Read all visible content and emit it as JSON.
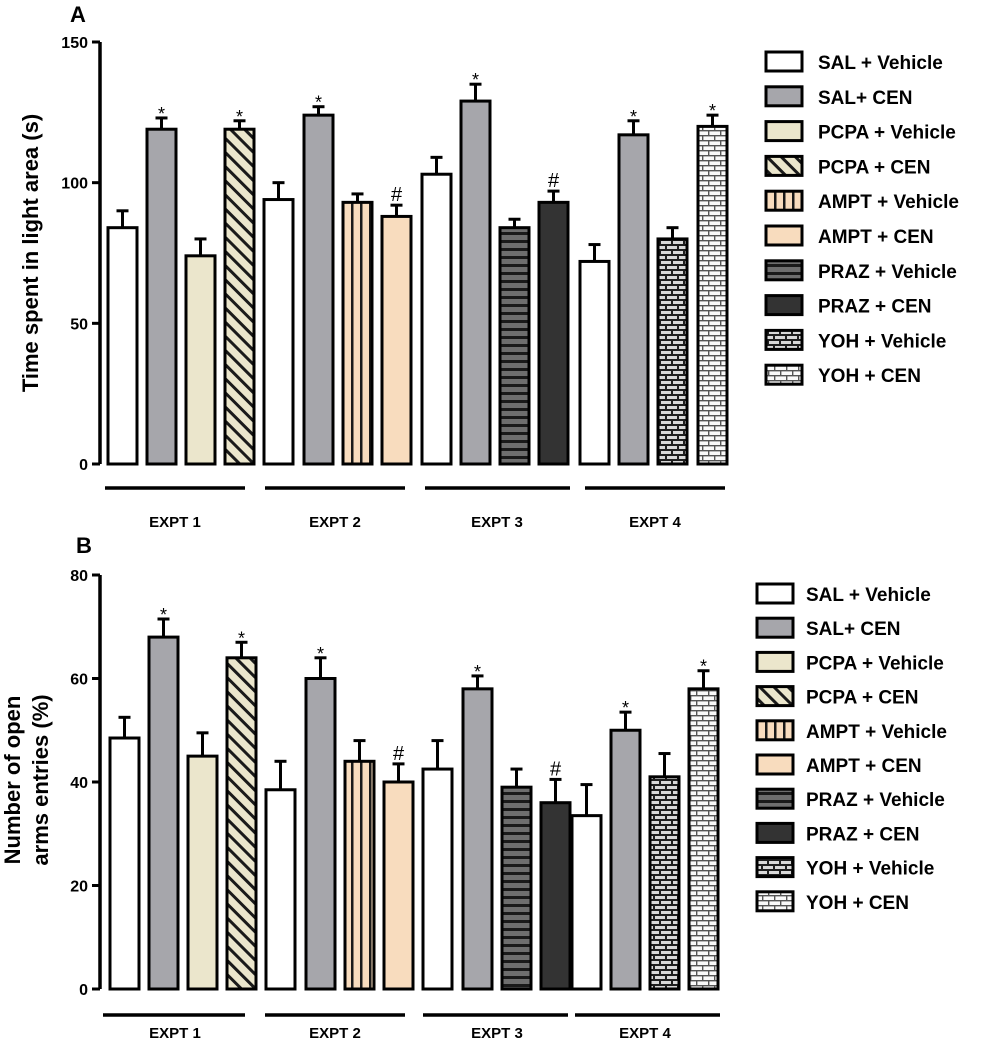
{
  "chart_data": [
    {
      "type": "bar",
      "panel": "A",
      "ylabel": "Time spent in light area (s)",
      "ylim": [
        0,
        150
      ],
      "yticks": [
        "0",
        "50",
        "100",
        "150"
      ],
      "groups": [
        "EXPT 1",
        "EXPT 2",
        "EXPT 3",
        "EXPT 4"
      ],
      "bars": [
        {
          "group": "EXPT 1",
          "series": "SAL + Vehicle",
          "value": 84,
          "error": 6,
          "mark": ""
        },
        {
          "group": "EXPT 1",
          "series": "SAL+ CEN",
          "value": 119,
          "error": 4,
          "mark": "*"
        },
        {
          "group": "EXPT 1",
          "series": "PCPA + Vehicle",
          "value": 74,
          "error": 6,
          "mark": ""
        },
        {
          "group": "EXPT 1",
          "series": "PCPA + CEN",
          "value": 119,
          "error": 3,
          "mark": "*"
        },
        {
          "group": "EXPT 2",
          "series": "SAL + Vehicle",
          "value": 94,
          "error": 6,
          "mark": ""
        },
        {
          "group": "EXPT 2",
          "series": "SAL+ CEN",
          "value": 124,
          "error": 3,
          "mark": "*"
        },
        {
          "group": "EXPT 2",
          "series": "AMPT + Vehicle",
          "value": 93,
          "error": 3,
          "mark": ""
        },
        {
          "group": "EXPT 2",
          "series": "AMPT + CEN",
          "value": 88,
          "error": 4,
          "mark": "#"
        },
        {
          "group": "EXPT 3",
          "series": "SAL + Vehicle",
          "value": 103,
          "error": 6,
          "mark": ""
        },
        {
          "group": "EXPT 3",
          "series": "SAL+ CEN",
          "value": 129,
          "error": 6,
          "mark": "*"
        },
        {
          "group": "EXPT 3",
          "series": "PRAZ + Vehicle",
          "value": 84,
          "error": 3,
          "mark": ""
        },
        {
          "group": "EXPT 3",
          "series": "PRAZ + CEN",
          "value": 93,
          "error": 4,
          "mark": "#"
        },
        {
          "group": "EXPT 4",
          "series": "SAL + Vehicle",
          "value": 72,
          "error": 6,
          "mark": ""
        },
        {
          "group": "EXPT 4",
          "series": "SAL+ CEN",
          "value": 117,
          "error": 5,
          "mark": "*"
        },
        {
          "group": "EXPT 4",
          "series": "YOH + Vehicle",
          "value": 80,
          "error": 4,
          "mark": ""
        },
        {
          "group": "EXPT 4",
          "series": "YOH + CEN",
          "value": 120,
          "error": 4,
          "mark": "*"
        }
      ]
    },
    {
      "type": "bar",
      "panel": "B",
      "ylabel": [
        "Number of open",
        "arms entries (%)"
      ],
      "ylim": [
        0,
        80
      ],
      "yticks": [
        "0",
        "20",
        "40",
        "60",
        "80"
      ],
      "groups": [
        "EXPT 1",
        "EXPT 2",
        "EXPT 3",
        "EXPT 4"
      ],
      "bars": [
        {
          "group": "EXPT 1",
          "series": "SAL + Vehicle",
          "value": 48.5,
          "error": 4,
          "mark": ""
        },
        {
          "group": "EXPT 1",
          "series": "SAL+ CEN",
          "value": 68,
          "error": 3.5,
          "mark": "*"
        },
        {
          "group": "EXPT 1",
          "series": "PCPA + Vehicle",
          "value": 45,
          "error": 4.5,
          "mark": ""
        },
        {
          "group": "EXPT 1",
          "series": "PCPA + CEN",
          "value": 64,
          "error": 3,
          "mark": "*"
        },
        {
          "group": "EXPT 2",
          "series": "SAL + Vehicle",
          "value": 38.5,
          "error": 5.5,
          "mark": ""
        },
        {
          "group": "EXPT 2",
          "series": "SAL+ CEN",
          "value": 60,
          "error": 4,
          "mark": "*"
        },
        {
          "group": "EXPT 2",
          "series": "AMPT + Vehicle",
          "value": 44,
          "error": 4,
          "mark": ""
        },
        {
          "group": "EXPT 2",
          "series": "AMPT + CEN",
          "value": 40,
          "error": 3.5,
          "mark": "#"
        },
        {
          "group": "EXPT 3",
          "series": "SAL + Vehicle",
          "value": 42.5,
          "error": 5.5,
          "mark": ""
        },
        {
          "group": "EXPT 3",
          "series": "SAL+ CEN",
          "value": 58,
          "error": 2.5,
          "mark": "*"
        },
        {
          "group": "EXPT 3",
          "series": "PRAZ + Vehicle",
          "value": 39,
          "error": 3.5,
          "mark": ""
        },
        {
          "group": "EXPT 3",
          "series": "PRAZ + CEN",
          "value": 36,
          "error": 4.5,
          "mark": "#"
        },
        {
          "group": "EXPT 4",
          "series": "SAL + Vehicle",
          "value": 33.5,
          "error": 6,
          "mark": ""
        },
        {
          "group": "EXPT 4",
          "series": "SAL+ CEN",
          "value": 50,
          "error": 3.5,
          "mark": "*"
        },
        {
          "group": "EXPT 4",
          "series": "YOH + Vehicle",
          "value": 41,
          "error": 4.5,
          "mark": ""
        },
        {
          "group": "EXPT 4",
          "series": "YOH + CEN",
          "value": 58,
          "error": 3.5,
          "mark": "*"
        }
      ]
    }
  ],
  "legend": [
    {
      "label": "SAL + Vehicle",
      "fill": "white",
      "color": "#ffffff"
    },
    {
      "label": "SAL+ CEN",
      "fill": "solid",
      "color": "#a6a6ab"
    },
    {
      "label": "PCPA + Vehicle",
      "fill": "solid",
      "color": "#ebe6cc"
    },
    {
      "label": "PCPA + CEN",
      "fill": "diagonal-stripes",
      "color": "#ebe6cc"
    },
    {
      "label": "AMPT + Vehicle",
      "fill": "vertical-stripes",
      "color": "#f8dcbe"
    },
    {
      "label": "AMPT + CEN",
      "fill": "solid",
      "color": "#f8dcbe"
    },
    {
      "label": "PRAZ + Vehicle",
      "fill": "horizontal-stripes",
      "color": "#555555"
    },
    {
      "label": "PRAZ + CEN",
      "fill": "solid",
      "color": "#333333"
    },
    {
      "label": "YOH + Vehicle",
      "fill": "brick-dark",
      "color": "#222222"
    },
    {
      "label": "YOH + CEN",
      "fill": "brick-light",
      "color": "#888888"
    }
  ]
}
